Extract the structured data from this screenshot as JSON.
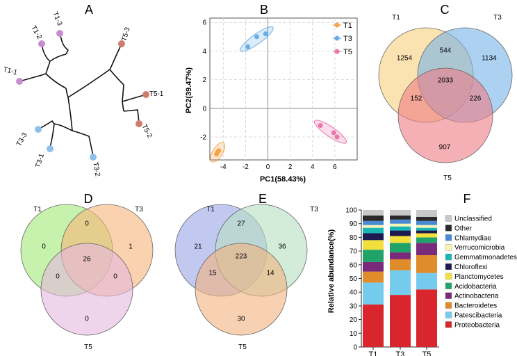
{
  "panels": {
    "A": {
      "letter": "A"
    },
    "B": {
      "letter": "B"
    },
    "C": {
      "letter": "C"
    },
    "D": {
      "letter": "D"
    },
    "E": {
      "letter": "E"
    },
    "F": {
      "letter": "F"
    }
  },
  "chart_data": [
    {
      "panel": "A",
      "type": "tree",
      "tips": [
        {
          "label": "T1-3",
          "group": "T1"
        },
        {
          "label": "T1-2",
          "group": "T1"
        },
        {
          "label": "T1-1",
          "group": "T1"
        },
        {
          "label": "T5-3",
          "group": "T5"
        },
        {
          "label": "T5-1",
          "group": "T5"
        },
        {
          "label": "T5-2",
          "group": "T5"
        },
        {
          "label": "T3-3",
          "group": "T3"
        },
        {
          "label": "T3-1",
          "group": "T3"
        },
        {
          "label": "T3-2",
          "group": "T3"
        }
      ]
    },
    {
      "panel": "B",
      "type": "scatter",
      "xlabel": "PC1(58.43%)",
      "ylabel": "PC2(39.47%)",
      "xlim": [
        -5.2,
        8
      ],
      "ylim": [
        -3.6,
        6.3
      ],
      "xticks": [
        -4,
        -2,
        0,
        2,
        4,
        6
      ],
      "yticks": [
        -2,
        0,
        2,
        4,
        6
      ],
      "grid": true,
      "legend_position": "top-right",
      "series": [
        {
          "name": "T1",
          "color": "#f5a44a",
          "points": [
            [
              -4.6,
              -3.2
            ],
            [
              -4.5,
              -3.05
            ],
            [
              -4.4,
              -2.95
            ]
          ]
        },
        {
          "name": "T3",
          "color": "#6aaee8",
          "points": [
            [
              -1.8,
              4.3
            ],
            [
              -1.0,
              5.0
            ],
            [
              -0.2,
              5.2
            ]
          ]
        },
        {
          "name": "T5",
          "color": "#e777aa",
          "points": [
            [
              4.7,
              -1.2
            ],
            [
              5.9,
              -1.7
            ],
            [
              6.2,
              -2.0
            ]
          ]
        }
      ]
    },
    {
      "panel": "C",
      "type": "venn",
      "sets": [
        {
          "name": "T1",
          "color": "#f7d07c"
        },
        {
          "name": "T3",
          "color": "#77b2e8"
        },
        {
          "name": "T5",
          "color": "#ef7c85"
        }
      ],
      "regions": {
        "only_a": "1254",
        "only_b": "1134",
        "only_c": "907",
        "ab": "544",
        "ac": "152",
        "bc": "226",
        "abc": "2033"
      }
    },
    {
      "panel": "D",
      "type": "venn",
      "sets": [
        {
          "name": "T1",
          "color": "#a2ea76"
        },
        {
          "name": "T3",
          "color": "#f9b479"
        },
        {
          "name": "T5",
          "color": "#e4b8de"
        }
      ],
      "regions": {
        "only_a": "0",
        "only_b": "1",
        "only_c": "0",
        "ab": "0",
        "ac": "0",
        "bc": "0",
        "abc": "26"
      }
    },
    {
      "panel": "E",
      "type": "venn",
      "sets": [
        {
          "name": "T1",
          "color": "#9aa5e8"
        },
        {
          "name": "T3",
          "color": "#b5e0c2"
        },
        {
          "name": "T5",
          "color": "#f2b27e"
        }
      ],
      "regions": {
        "only_a": "21",
        "only_b": "36",
        "only_c": "30",
        "ab": "27",
        "ac": "15",
        "bc": "14",
        "abc": "223"
      }
    },
    {
      "panel": "F",
      "type": "bar",
      "stacked": true,
      "ylabel": "Relative abundance(%)",
      "ylim": [
        0,
        100
      ],
      "yticks": [
        0,
        10,
        20,
        30,
        40,
        50,
        60,
        70,
        80,
        90,
        100
      ],
      "categories": [
        "T1",
        "T3",
        "T5"
      ],
      "legend_position": "right",
      "series": [
        {
          "name": "Proteobacteria",
          "color": "#d8262c",
          "values": [
            31,
            38,
            42
          ]
        },
        {
          "name": "Patescibacteria",
          "color": "#74cbee",
          "values": [
            16,
            18,
            12
          ]
        },
        {
          "name": "Bacteroidetes",
          "color": "#e08c2a",
          "values": [
            8,
            8,
            13
          ]
        },
        {
          "name": "Actinobacteria",
          "color": "#7a2a7b",
          "values": [
            7,
            5,
            9
          ]
        },
        {
          "name": "Acidobacteria",
          "color": "#1fa368",
          "values": [
            9,
            7,
            4
          ]
        },
        {
          "name": "Planctomycetes",
          "color": "#f3e03a",
          "values": [
            7,
            5,
            3
          ]
        },
        {
          "name": "Chloroflexi",
          "color": "#1c1a4e",
          "values": [
            5,
            4,
            2
          ]
        },
        {
          "name": "Gemmatimonadetes",
          "color": "#1ab5b5",
          "values": [
            4,
            3,
            2
          ]
        },
        {
          "name": "Verrucomicrobia",
          "color": "#f6f6b2",
          "values": [
            2,
            2,
            2
          ]
        },
        {
          "name": "Chlamydiae",
          "color": "#4a8ad4",
          "values": [
            3,
            3,
            3
          ]
        },
        {
          "name": "Other",
          "color": "#2a2a2a",
          "values": [
            4,
            3,
            3
          ]
        },
        {
          "name": "Unclassified",
          "color": "#c8c8c8",
          "values": [
            4,
            4,
            5
          ]
        }
      ]
    }
  ]
}
